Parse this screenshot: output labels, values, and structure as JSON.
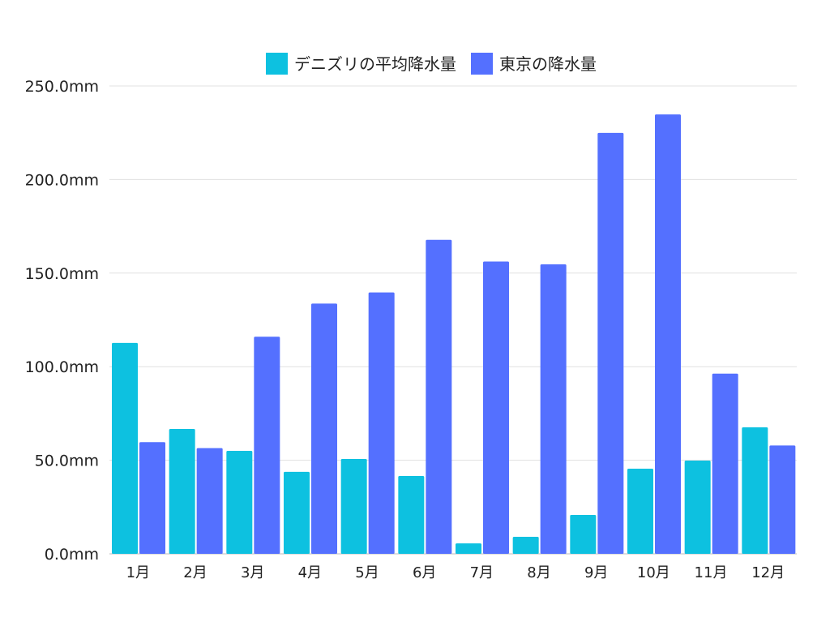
{
  "chart_data": {
    "type": "bar",
    "categories": [
      "1月",
      "2月",
      "3月",
      "4月",
      "5月",
      "6月",
      "7月",
      "8月",
      "9月",
      "10月",
      "11月",
      "12月"
    ],
    "series": [
      {
        "name": "デニズリの平均降水量",
        "color": "#0dc1e0",
        "values": [
          112.7,
          66.7,
          55.0,
          43.8,
          50.7,
          41.6,
          5.6,
          9.1,
          20.8,
          45.5,
          49.8,
          67.6
        ]
      },
      {
        "name": "東京の降水量",
        "color": "#5470ff",
        "values": [
          59.7,
          56.5,
          116.0,
          133.7,
          139.7,
          167.8,
          156.2,
          154.7,
          224.9,
          234.8,
          96.3,
          57.9
        ]
      }
    ],
    "yticks": [
      "0.0mm",
      "50.0mm",
      "100.0mm",
      "150.0mm",
      "200.0mm",
      "250.0mm"
    ],
    "ylim": [
      0,
      250
    ],
    "ytick_step": 50,
    "grid": true,
    "legend": "top"
  }
}
